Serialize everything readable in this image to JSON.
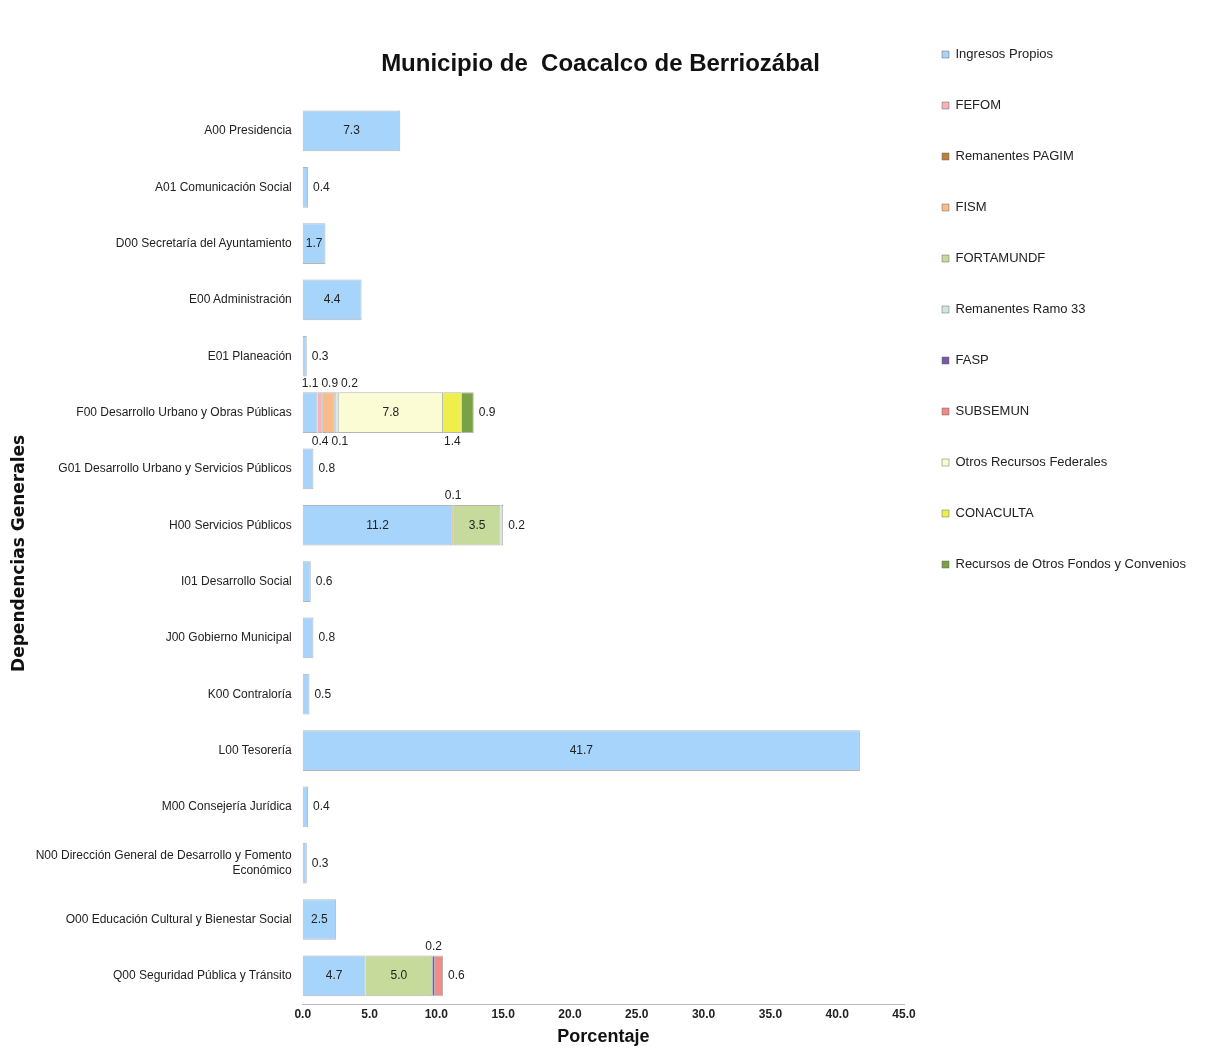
{
  "chart_data": {
    "type": "bar",
    "orientation": "horizontal",
    "stacked": true,
    "title": "Municipio de  Coacalco de Berriozábal",
    "xlabel": "Porcentaje",
    "ylabel": "Dependencias Generales",
    "categories": [
      "A00 Presidencia",
      "A01 Comunicación Social",
      "D00 Secretaría del Ayuntamiento",
      "E00 Administración",
      "E01 Planeación",
      "F00 Desarrollo Urbano y Obras Públicas",
      "G01 Desarrollo Urbano y Servicios Públicos",
      "H00 Servicios Públicos",
      "I01 Desarrollo Social",
      "J00 Gobierno Municipal",
      "K00 Contraloría",
      "L00 Tesorería",
      "M00 Consejería Jurídica",
      "N00 Dirección General de Desarrollo y Fomento Económico",
      "O00 Educación Cultural y Bienestar Social",
      "Q00 Seguridad Pública y Tránsito"
    ],
    "series": [
      {
        "name": "Ingresos Propios",
        "color": "#a6d4fa",
        "values": [
          7.3,
          0.4,
          1.7,
          4.4,
          0.3,
          1.1,
          0.8,
          11.2,
          0.6,
          0.8,
          0.5,
          41.7,
          0.4,
          0.3,
          2.5,
          4.7
        ],
        "value_labels": [
          "7.3",
          "0.4",
          "1.7",
          "4.4",
          "0.3",
          "1.1",
          "0.8",
          "11.2",
          "0.6",
          "0.8",
          "0.5",
          "41.7",
          "0.4",
          "0.3",
          "2.5",
          "4.7"
        ]
      },
      {
        "name": "FEFOM",
        "color": "#f4b4b8",
        "values": [
          null,
          null,
          null,
          null,
          null,
          0.4,
          null,
          null,
          null,
          null,
          null,
          null,
          null,
          null,
          null,
          null
        ],
        "value_labels": [
          null,
          null,
          null,
          null,
          null,
          "0.4",
          null,
          null,
          null,
          null,
          null,
          null,
          null,
          null,
          null,
          null
        ]
      },
      {
        "name": "Remanentes PAGIM",
        "color": "#b8823c",
        "values": [
          null,
          null,
          null,
          null,
          null,
          null,
          null,
          0.1,
          null,
          null,
          null,
          null,
          null,
          null,
          null,
          null
        ],
        "value_labels": [
          null,
          null,
          null,
          null,
          null,
          null,
          null,
          "0.1",
          null,
          null,
          null,
          null,
          null,
          null,
          null,
          null
        ]
      },
      {
        "name": "FISM",
        "color": "#f9bb8c",
        "values": [
          null,
          null,
          null,
          null,
          null,
          0.9,
          null,
          null,
          null,
          null,
          null,
          null,
          null,
          null,
          null,
          null
        ],
        "value_labels": [
          null,
          null,
          null,
          null,
          null,
          "0.9",
          null,
          null,
          null,
          null,
          null,
          null,
          null,
          null,
          null,
          null
        ]
      },
      {
        "name": "FORTAMUNDF",
        "color": "#c6da9c",
        "values": [
          null,
          null,
          null,
          null,
          null,
          0.1,
          null,
          3.5,
          null,
          null,
          null,
          null,
          null,
          null,
          null,
          5.0
        ],
        "value_labels": [
          null,
          null,
          null,
          null,
          null,
          "0.1",
          null,
          "3.5",
          null,
          null,
          null,
          null,
          null,
          null,
          null,
          "5.0"
        ]
      },
      {
        "name": "Remanentes Ramo 33",
        "color": "#cfe8dc",
        "values": [
          null,
          null,
          null,
          null,
          null,
          0.2,
          null,
          0.2,
          null,
          null,
          null,
          null,
          null,
          null,
          null,
          null
        ],
        "value_labels": [
          null,
          null,
          null,
          null,
          null,
          "0.2",
          null,
          "0.2",
          null,
          null,
          null,
          null,
          null,
          null,
          null,
          null
        ]
      },
      {
        "name": "FASP",
        "color": "#7a5aa8",
        "values": [
          null,
          null,
          null,
          null,
          null,
          null,
          null,
          null,
          null,
          null,
          null,
          null,
          null,
          null,
          null,
          0.2
        ],
        "value_labels": [
          null,
          null,
          null,
          null,
          null,
          null,
          null,
          null,
          null,
          null,
          null,
          null,
          null,
          null,
          null,
          "0.2"
        ]
      },
      {
        "name": "SUBSEMUN",
        "color": "#f28a8a",
        "values": [
          null,
          null,
          null,
          null,
          null,
          null,
          null,
          null,
          null,
          null,
          null,
          null,
          null,
          null,
          null,
          0.6
        ],
        "value_labels": [
          null,
          null,
          null,
          null,
          null,
          null,
          null,
          null,
          null,
          null,
          null,
          null,
          null,
          null,
          null,
          "0.6"
        ]
      },
      {
        "name": "Otros Recursos Federales",
        "color": "#fcfcd4",
        "values": [
          null,
          null,
          null,
          null,
          null,
          7.8,
          null,
          null,
          null,
          null,
          null,
          null,
          null,
          null,
          null,
          null
        ],
        "value_labels": [
          null,
          null,
          null,
          null,
          null,
          "7.8",
          null,
          null,
          null,
          null,
          null,
          null,
          null,
          null,
          null,
          null
        ]
      },
      {
        "name": "CONACULTA",
        "color": "#eeee4c",
        "values": [
          null,
          null,
          null,
          null,
          null,
          1.4,
          null,
          null,
          null,
          null,
          null,
          null,
          null,
          null,
          null,
          null
        ],
        "value_labels": [
          null,
          null,
          null,
          null,
          null,
          "1.4",
          null,
          null,
          null,
          null,
          null,
          null,
          null,
          null,
          null,
          null
        ]
      },
      {
        "name": "Recursos de Otros Fondos y Convenios",
        "color": "#78a244",
        "values": [
          null,
          null,
          null,
          null,
          null,
          0.9,
          null,
          null,
          null,
          null,
          null,
          null,
          null,
          null,
          null,
          null
        ],
        "value_labels": [
          null,
          null,
          null,
          null,
          null,
          "0.9",
          null,
          null,
          null,
          null,
          null,
          null,
          null,
          null,
          null,
          null
        ]
      }
    ],
    "xlim": [
      0,
      45
    ],
    "xticks": [
      {
        "value": 0,
        "label": "0.0"
      },
      {
        "value": 5,
        "label": "5.0"
      },
      {
        "value": 10,
        "label": "10.0"
      },
      {
        "value": 15,
        "label": "15.0"
      },
      {
        "value": 20,
        "label": "20.0"
      },
      {
        "value": 25,
        "label": "25.0"
      },
      {
        "value": 30,
        "label": "30.0"
      },
      {
        "value": 35,
        "label": "35.0"
      },
      {
        "value": 40,
        "label": "40.0"
      },
      {
        "value": 45,
        "label": "45.0"
      }
    ],
    "grid": false,
    "legend": "right"
  }
}
